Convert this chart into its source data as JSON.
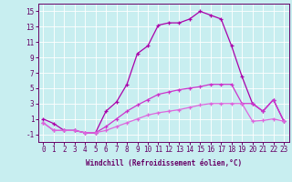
{
  "xlabel": "Windchill (Refroidissement éolien,°C)",
  "bg_color": "#c8eef0",
  "line_color1": "#aa00aa",
  "line_color2": "#cc33cc",
  "line_color3": "#dd66dd",
  "xlim": [
    -0.5,
    23.5
  ],
  "ylim": [
    -2.0,
    16.0
  ],
  "yticks": [
    -1,
    1,
    3,
    5,
    7,
    9,
    11,
    13,
    15
  ],
  "xticks": [
    0,
    1,
    2,
    3,
    4,
    5,
    6,
    7,
    8,
    9,
    10,
    11,
    12,
    13,
    14,
    15,
    16,
    17,
    18,
    19,
    20,
    21,
    22,
    23
  ],
  "x": [
    0,
    1,
    2,
    3,
    4,
    5,
    6,
    7,
    8,
    9,
    10,
    11,
    12,
    13,
    14,
    15,
    16,
    17,
    18,
    19,
    20,
    21,
    22,
    23
  ],
  "line1": [
    1.0,
    0.4,
    -0.5,
    -0.5,
    -0.8,
    -0.8,
    2.0,
    3.2,
    5.5,
    9.5,
    10.5,
    13.2,
    13.5,
    13.5,
    14.0,
    15.0,
    14.5,
    14.0,
    10.5,
    6.5,
    3.0,
    2.0,
    3.5,
    0.7
  ],
  "line2": [
    0.5,
    -0.5,
    -0.5,
    -0.5,
    -0.8,
    -0.8,
    0.0,
    1.0,
    2.0,
    2.8,
    3.5,
    4.2,
    4.5,
    4.8,
    5.0,
    5.2,
    5.5,
    5.5,
    5.5,
    3.0,
    3.0,
    2.0,
    3.5,
    0.7
  ],
  "line3": [
    0.5,
    -0.5,
    -0.5,
    -0.5,
    -0.8,
    -0.8,
    -0.5,
    0.0,
    0.5,
    1.0,
    1.5,
    1.8,
    2.0,
    2.2,
    2.5,
    2.8,
    3.0,
    3.0,
    3.0,
    3.0,
    0.7,
    0.8,
    1.0,
    0.7
  ],
  "tick_color": "#660066",
  "spine_color": "#660066",
  "grid_color": "#ffffff",
  "label_fontsize": 5.5,
  "xlabel_fontsize": 5.5
}
